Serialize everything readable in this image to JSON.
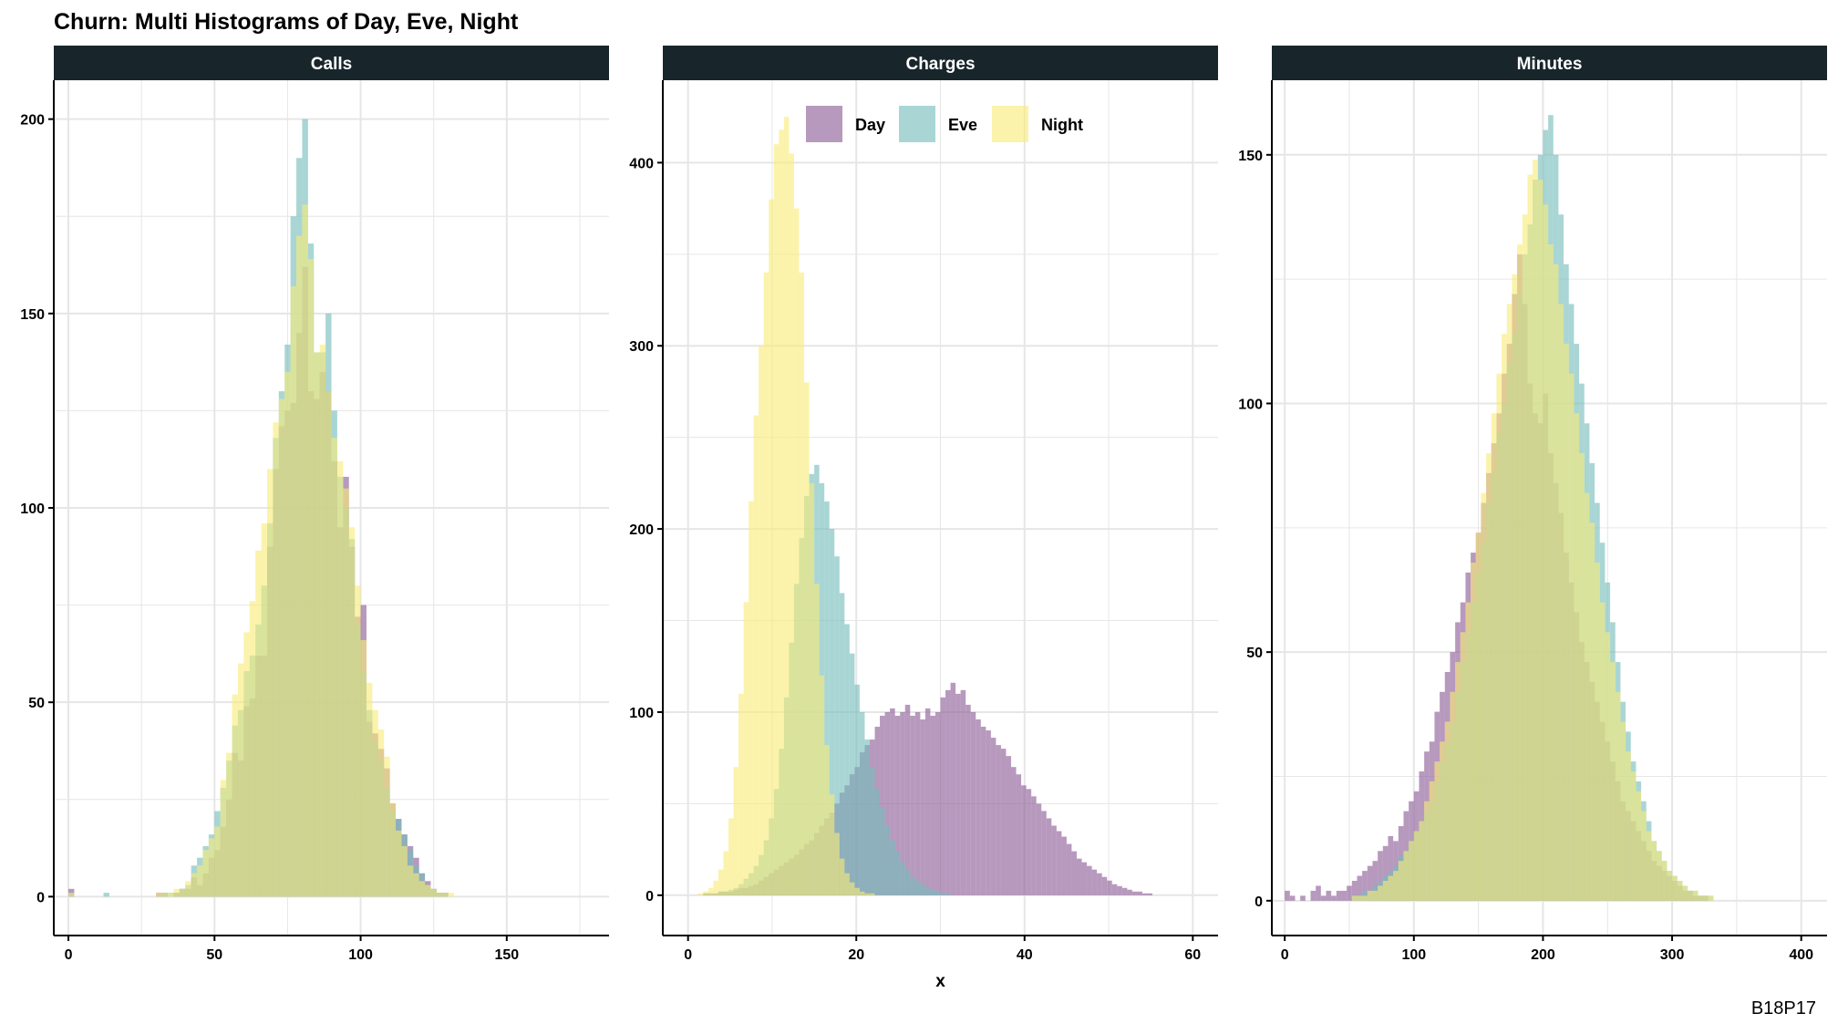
{
  "title": "Churn: Multi Histograms of Day, Eve, Night",
  "caption": "B18P17",
  "colors": {
    "Day": "#8b5a96",
    "Eve": "#74bdbb",
    "Night": "#f9ec78",
    "strip_background": "#18262c",
    "grid": "#e6e6e6"
  },
  "chart_data": [
    {
      "type": "histogram",
      "facet": "Calls",
      "xlabel": "",
      "ylabel": "",
      "xlim": [
        -5,
        185
      ],
      "ylim": [
        -10,
        210
      ],
      "xticks": [
        0,
        50,
        100,
        150
      ],
      "yticks": [
        0,
        50,
        100,
        150,
        200
      ],
      "bin_width": 2,
      "bin_start": 0,
      "series": [
        {
          "name": "Day",
          "values": [
            2,
            0,
            0,
            0,
            0,
            0,
            0,
            0,
            0,
            0,
            0,
            0,
            0,
            0,
            0,
            1,
            1,
            0,
            1,
            2,
            2,
            5,
            3,
            6,
            10,
            12,
            18,
            25,
            37,
            35,
            49,
            51,
            62,
            62,
            90,
            110,
            121,
            125,
            127,
            145,
            162,
            130,
            128,
            135,
            130,
            112,
            95,
            108,
            90,
            72,
            75,
            45,
            42,
            38,
            33,
            24,
            20,
            16,
            13,
            10,
            6,
            4,
            2,
            1,
            1,
            0,
            0,
            0,
            0,
            0,
            0,
            0,
            0,
            0,
            0,
            0,
            0,
            0,
            0,
            0,
            0,
            0,
            0,
            0,
            0,
            0,
            0,
            0,
            0,
            0,
            0,
            0,
            0,
            0
          ]
        },
        {
          "name": "Eve",
          "values": [
            1,
            0,
            0,
            0,
            0,
            0,
            1,
            0,
            0,
            0,
            0,
            0,
            0,
            0,
            0,
            0,
            1,
            1,
            1,
            2,
            3,
            8,
            10,
            13,
            16,
            22,
            28,
            35,
            44,
            48,
            58,
            62,
            70,
            80,
            96,
            118,
            130,
            142,
            175,
            190,
            200,
            168,
            140,
            140,
            150,
            125,
            108,
            100,
            92,
            70,
            58,
            48,
            40,
            35,
            28,
            22,
            20,
            16,
            12,
            8,
            6,
            3,
            2,
            1,
            1,
            0,
            0,
            0,
            0,
            0,
            0,
            0,
            0,
            0,
            0,
            0,
            0,
            0,
            0,
            0,
            0,
            0,
            0,
            0,
            0,
            0,
            0,
            0,
            0,
            0,
            0,
            0,
            0,
            0
          ]
        },
        {
          "name": "Night",
          "values": [
            1,
            0,
            0,
            0,
            0,
            0,
            0,
            0,
            0,
            0,
            0,
            0,
            0,
            0,
            0,
            1,
            1,
            1,
            2,
            2,
            4,
            6,
            8,
            12,
            15,
            18,
            30,
            37,
            52,
            60,
            68,
            76,
            89,
            96,
            110,
            122,
            128,
            135,
            157,
            170,
            178,
            164,
            140,
            142,
            130,
            118,
            112,
            105,
            95,
            80,
            66,
            55,
            48,
            43,
            36,
            24,
            17,
            13,
            8,
            6,
            4,
            3,
            2,
            1,
            1,
            1,
            0,
            0,
            0,
            0,
            0,
            0,
            0,
            0,
            0,
            0,
            0,
            0,
            0,
            0,
            0,
            0,
            0,
            0,
            0,
            0,
            0,
            0,
            0,
            0,
            0,
            0,
            0,
            0
          ]
        }
      ]
    },
    {
      "type": "histogram",
      "facet": "Charges",
      "xlabel": "x",
      "ylabel": "",
      "xlim": [
        -3,
        63
      ],
      "ylim": [
        -22,
        445
      ],
      "xticks": [
        0,
        20,
        40,
        60
      ],
      "yticks": [
        0,
        100,
        200,
        300,
        400
      ],
      "bin_width": 0.6,
      "bin_start": 0,
      "legend": {
        "position": "top-left-inside",
        "entries": [
          "Day",
          "Eve",
          "Night"
        ]
      },
      "series": [
        {
          "name": "Day",
          "values": [
            0,
            0,
            0,
            1,
            1,
            1,
            2,
            2,
            2,
            3,
            4,
            4,
            5,
            6,
            8,
            10,
            12,
            14,
            16,
            18,
            20,
            22,
            25,
            28,
            30,
            34,
            38,
            42,
            45,
            50,
            56,
            60,
            66,
            70,
            78,
            82,
            85,
            92,
            98,
            100,
            102,
            98,
            100,
            104,
            98,
            100,
            96,
            102,
            98,
            100,
            108,
            112,
            116,
            110,
            112,
            104,
            100,
            96,
            92,
            90,
            86,
            82,
            80,
            76,
            70,
            66,
            60,
            58,
            54,
            50,
            46,
            42,
            38,
            35,
            32,
            28,
            24,
            20,
            18,
            16,
            14,
            12,
            10,
            8,
            6,
            5,
            4,
            3,
            2,
            2,
            1,
            1,
            0,
            0,
            0,
            0,
            0,
            0,
            0,
            0
          ]
        },
        {
          "name": "Eve",
          "values": [
            0,
            0,
            0,
            1,
            1,
            1,
            2,
            2,
            3,
            4,
            6,
            9,
            12,
            16,
            22,
            30,
            42,
            58,
            80,
            108,
            138,
            170,
            195,
            218,
            230,
            235,
            225,
            215,
            200,
            185,
            165,
            148,
            132,
            115,
            100,
            85,
            70,
            58,
            48,
            38,
            30,
            24,
            18,
            14,
            10,
            8,
            6,
            4,
            3,
            2,
            1,
            1,
            0,
            0,
            0,
            0,
            0,
            0,
            0,
            0,
            0,
            0,
            0,
            0,
            0,
            0,
            0,
            0,
            0,
            0,
            0,
            0,
            0,
            0,
            0,
            0,
            0,
            0,
            0,
            0,
            0,
            0,
            0,
            0,
            0,
            0,
            0,
            0,
            0,
            0,
            0,
            0,
            0,
            0,
            0,
            0,
            0,
            0,
            0,
            0
          ]
        },
        {
          "name": "Night",
          "values": [
            0,
            0,
            1,
            2,
            4,
            8,
            14,
            24,
            42,
            70,
            110,
            160,
            215,
            262,
            300,
            340,
            380,
            410,
            418,
            425,
            405,
            375,
            340,
            280,
            225,
            170,
            120,
            82,
            55,
            34,
            20,
            12,
            7,
            4,
            2,
            1,
            1,
            0,
            0,
            0,
            0,
            0,
            0,
            0,
            0,
            0,
            0,
            0,
            0,
            0,
            0,
            0,
            0,
            0,
            0,
            0,
            0,
            0,
            0,
            0,
            0,
            0,
            0,
            0,
            0,
            0,
            0,
            0,
            0,
            0,
            0,
            0,
            0,
            0,
            0,
            0,
            0,
            0,
            0,
            0,
            0,
            0,
            0,
            0,
            0,
            0,
            0,
            0,
            0,
            0,
            0,
            0,
            0,
            0,
            0,
            0,
            0,
            0,
            0,
            0
          ]
        }
      ]
    },
    {
      "type": "histogram",
      "facet": "Minutes",
      "xlabel": "",
      "ylabel": "",
      "xlim": [
        -10,
        420
      ],
      "ylim": [
        -7,
        165
      ],
      "xticks": [
        0,
        100,
        200,
        300,
        400
      ],
      "yticks": [
        0,
        50,
        100,
        150
      ],
      "bin_width": 4,
      "bin_start": 0,
      "series": [
        {
          "name": "Day",
          "values": [
            2,
            1,
            0,
            1,
            0,
            2,
            3,
            1,
            2,
            1,
            2,
            2,
            3,
            4,
            5,
            6,
            7,
            8,
            10,
            11,
            13,
            12,
            15,
            18,
            20,
            22,
            26,
            30,
            32,
            38,
            42,
            46,
            50,
            56,
            60,
            66,
            70,
            74,
            80,
            86,
            92,
            98,
            106,
            112,
            122,
            130,
            120,
            104,
            98,
            96,
            102,
            90,
            84,
            78,
            70,
            64,
            58,
            52,
            48,
            44,
            40,
            36,
            32,
            28,
            24,
            20,
            18,
            16,
            14,
            12,
            10,
            8,
            7,
            6,
            5,
            4,
            3,
            2,
            2,
            1,
            1,
            1,
            0,
            0,
            0,
            0,
            0,
            0,
            0,
            0,
            0,
            0,
            0,
            0,
            0,
            0,
            0,
            0,
            0,
            0,
            0,
            0,
            0,
            0
          ]
        },
        {
          "name": "Eve",
          "values": [
            0,
            0,
            0,
            0,
            0,
            0,
            0,
            0,
            0,
            0,
            0,
            0,
            0,
            1,
            1,
            2,
            2,
            3,
            4,
            5,
            6,
            7,
            9,
            10,
            12,
            14,
            16,
            18,
            20,
            24,
            28,
            32,
            36,
            42,
            48,
            54,
            60,
            66,
            72,
            80,
            86,
            94,
            100,
            108,
            114,
            122,
            130,
            136,
            145,
            150,
            155,
            158,
            150,
            138,
            128,
            120,
            112,
            104,
            96,
            88,
            80,
            72,
            64,
            56,
            48,
            40,
            34,
            28,
            24,
            20,
            16,
            12,
            10,
            8,
            6,
            5,
            4,
            3,
            2,
            2,
            1,
            1,
            1,
            0,
            0,
            0,
            0,
            0,
            0,
            0,
            0,
            0,
            0,
            0,
            0,
            0,
            0,
            0,
            0,
            0,
            0,
            0,
            0,
            0
          ]
        },
        {
          "name": "Night",
          "values": [
            0,
            0,
            0,
            0,
            0,
            0,
            0,
            0,
            0,
            0,
            0,
            0,
            0,
            1,
            1,
            1,
            2,
            2,
            3,
            4,
            5,
            6,
            8,
            10,
            12,
            14,
            16,
            20,
            24,
            28,
            32,
            36,
            42,
            48,
            54,
            60,
            68,
            74,
            82,
            90,
            98,
            106,
            114,
            120,
            126,
            132,
            138,
            146,
            149,
            145,
            140,
            132,
            128,
            120,
            112,
            106,
            98,
            90,
            82,
            76,
            68,
            60,
            54,
            48,
            42,
            36,
            30,
            26,
            22,
            18,
            14,
            12,
            10,
            8,
            6,
            5,
            4,
            3,
            2,
            2,
            1,
            1,
            1,
            0,
            0,
            0,
            0,
            0,
            0,
            0,
            0,
            0,
            0,
            0,
            0,
            0,
            0,
            0,
            0,
            0,
            0,
            0,
            0,
            0
          ]
        }
      ]
    }
  ]
}
